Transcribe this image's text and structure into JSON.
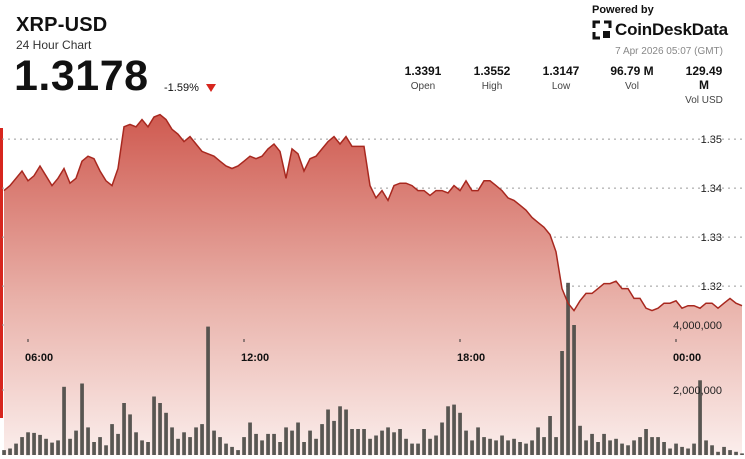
{
  "header": {
    "title": "XRP-USD",
    "subtitle": "24 Hour Chart",
    "price": "1.3178",
    "change": "-1.59%",
    "powered_by": "Powered by",
    "brand": "CoinDeskData",
    "timestamp": "7 Apr 2026 05:07 (GMT)"
  },
  "stats": [
    {
      "value": "1.3391",
      "label": "Open"
    },
    {
      "value": "1.3552",
      "label": "High"
    },
    {
      "value": "1.3147",
      "label": "Low"
    },
    {
      "value": "96.79 M",
      "label": "Vol"
    },
    {
      "value": "129.49 M",
      "label": "Vol USD"
    }
  ],
  "colors": {
    "accent": "#d7261e",
    "line": "#a8281f",
    "bars": "#4a4a45"
  },
  "chart_data": {
    "type": "area",
    "price_axis": {
      "ticks": [
        1.32,
        1.33,
        1.34,
        1.35
      ],
      "range": [
        1.309,
        1.359
      ]
    },
    "volume_axis": {
      "ticks": [
        2000000,
        4000000
      ],
      "tick_labels": [
        "2,000,000",
        "4,000,000"
      ],
      "range": [
        0,
        6000000
      ]
    },
    "x_ticks": [
      "06:00",
      "12:00",
      "18:00",
      "00:00"
    ],
    "x_tick_positions": [
      4,
      40,
      76,
      112
    ],
    "price": [
      1.3395,
      1.3405,
      1.342,
      1.3435,
      1.3415,
      1.3425,
      1.3445,
      1.3425,
      1.3405,
      1.342,
      1.344,
      1.341,
      1.342,
      1.3455,
      1.3465,
      1.346,
      1.3435,
      1.3415,
      1.3405,
      1.344,
      1.3525,
      1.353,
      1.3525,
      1.354,
      1.3525,
      1.3545,
      1.355,
      1.354,
      1.352,
      1.351,
      1.3495,
      1.3505,
      1.349,
      1.3475,
      1.347,
      1.3465,
      1.3455,
      1.3445,
      1.344,
      1.3445,
      1.3455,
      1.3465,
      1.346,
      1.3465,
      1.348,
      1.349,
      1.3475,
      1.342,
      1.348,
      1.347,
      1.3435,
      1.346,
      1.3465,
      1.348,
      1.3495,
      1.3505,
      1.349,
      1.3505,
      1.3485,
      1.3485,
      1.3485,
      1.3405,
      1.338,
      1.3395,
      1.3375,
      1.3405,
      1.341,
      1.341,
      1.3405,
      1.3395,
      1.3395,
      1.3385,
      1.3395,
      1.3395,
      1.339,
      1.3405,
      1.3395,
      1.3415,
      1.3395,
      1.3395,
      1.3415,
      1.3415,
      1.3405,
      1.3395,
      1.338,
      1.3375,
      1.3365,
      1.3355,
      1.334,
      1.333,
      1.332,
      1.3305,
      1.327,
      1.3195,
      1.3165,
      1.315,
      1.317,
      1.3185,
      1.3185,
      1.3195,
      1.3205,
      1.3205,
      1.321,
      1.3195,
      1.3195,
      1.3175,
      1.3175,
      1.3155,
      1.315,
      1.3155,
      1.3165,
      1.3165,
      1.317,
      1.3155,
      1.316,
      1.316,
      1.3155,
      1.3165,
      1.3165,
      1.3155,
      1.3165,
      1.3175,
      1.3165,
      1.316
    ],
    "volume": [
      150000,
      200000,
      350000,
      550000,
      700000,
      680000,
      620000,
      500000,
      380000,
      450000,
      2100000,
      500000,
      750000,
      2200000,
      850000,
      400000,
      550000,
      300000,
      950000,
      650000,
      1600000,
      1250000,
      700000,
      450000,
      400000,
      1800000,
      1600000,
      1300000,
      850000,
      500000,
      700000,
      550000,
      850000,
      950000,
      3950000,
      750000,
      550000,
      350000,
      250000,
      150000,
      550000,
      1000000,
      650000,
      450000,
      650000,
      650000,
      400000,
      850000,
      750000,
      1000000,
      400000,
      750000,
      500000,
      950000,
      1400000,
      1050000,
      1500000,
      1400000,
      800000,
      800000,
      800000,
      500000,
      600000,
      750000,
      850000,
      700000,
      800000,
      500000,
      350000,
      350000,
      800000,
      500000,
      600000,
      1000000,
      1500000,
      1550000,
      1300000,
      750000,
      450000,
      850000,
      550000,
      500000,
      450000,
      600000,
      450000,
      500000,
      400000,
      350000,
      450000,
      850000,
      550000,
      1200000,
      550000,
      3200000,
      5300000,
      4000000,
      900000,
      450000,
      650000,
      400000,
      650000,
      450000,
      500000,
      350000,
      300000,
      450000,
      550000,
      800000,
      550000,
      550000,
      400000,
      200000,
      350000,
      250000,
      200000,
      350000,
      2300000,
      450000,
      300000,
      100000,
      250000,
      150000,
      100000,
      50000
    ]
  }
}
